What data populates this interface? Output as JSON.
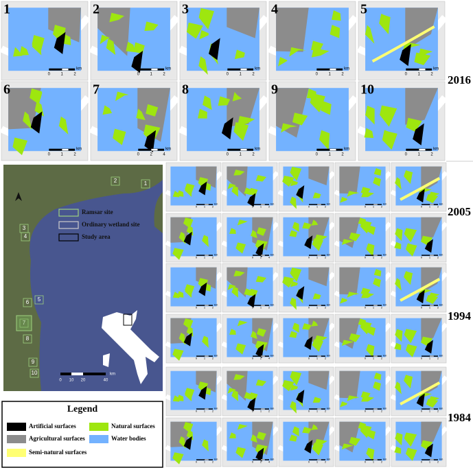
{
  "panels": [
    {
      "label": "1",
      "scale": [
        "0",
        "1",
        "2"
      ],
      "unit": "km"
    },
    {
      "label": "2",
      "scale": [
        "0",
        "1",
        "2"
      ],
      "unit": "km"
    },
    {
      "label": "3",
      "scale": [
        "0",
        "1",
        "2"
      ],
      "unit": "km"
    },
    {
      "label": "4",
      "scale": [
        "0",
        "1",
        "2"
      ],
      "unit": "km"
    },
    {
      "label": "5",
      "scale": [
        "0",
        "1",
        "2"
      ],
      "unit": "km"
    },
    {
      "label": "6",
      "scale": [
        "0",
        "1",
        "2"
      ],
      "unit": "km"
    },
    {
      "label": "7",
      "scale": [
        "0",
        "2",
        "4"
      ],
      "unit": "km"
    },
    {
      "label": "8",
      "scale": [
        "0",
        "1",
        "2"
      ],
      "unit": "km"
    },
    {
      "label": "9",
      "scale": [
        "0",
        "1",
        "2"
      ],
      "unit": "km"
    },
    {
      "label": "10",
      "scale": [
        "0",
        "1",
        "2"
      ],
      "unit": "km"
    }
  ],
  "years": [
    "2016",
    "2005",
    "1994",
    "1984"
  ],
  "overview": {
    "site_labels": [
      "1",
      "2",
      "3",
      "4",
      "5",
      "6",
      "7",
      "8",
      "9",
      "10"
    ],
    "map_legend": [
      "Ramsar site",
      "Ordinary wetland site",
      "Study area"
    ],
    "scale": [
      "0",
      "10",
      "20",
      "40"
    ],
    "unit": "km"
  },
  "legend": {
    "title": "Legend",
    "items": [
      "Artificial surfaces",
      "Natural surfaces",
      "Agricultural surfaces",
      "Water bodies",
      "Semi-natural surfaces"
    ]
  }
}
